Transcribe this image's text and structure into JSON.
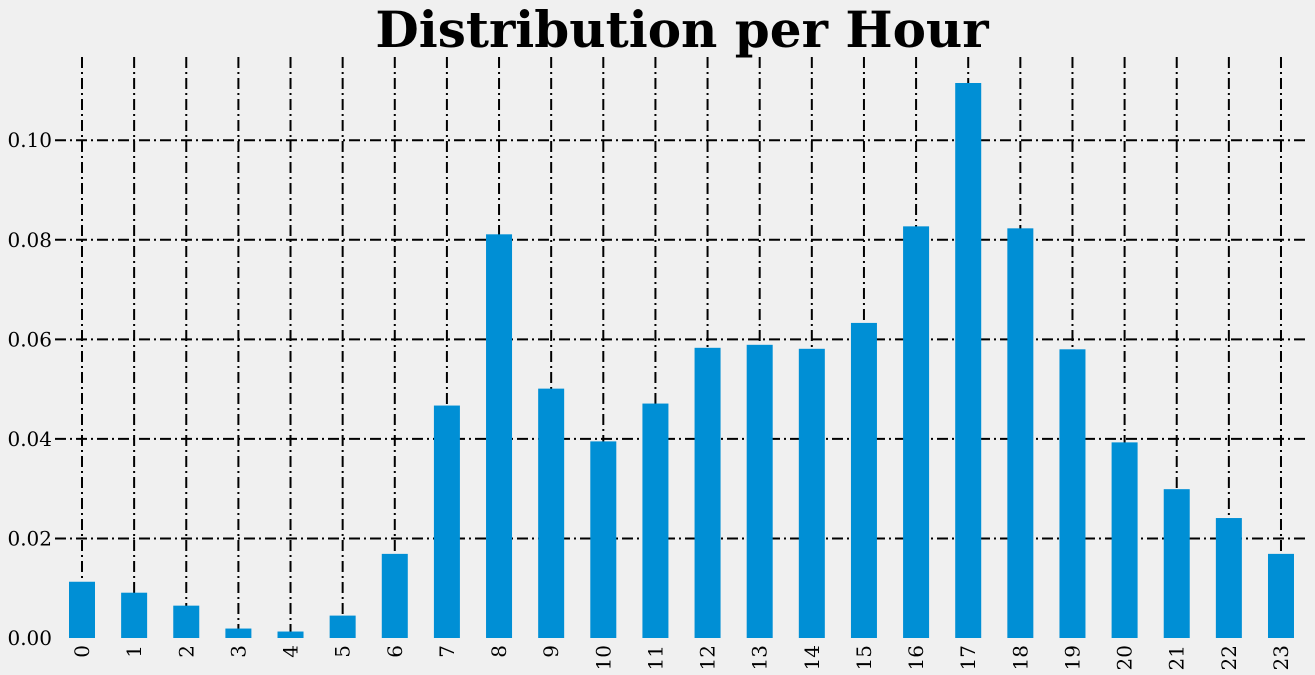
{
  "chart_data": {
    "type": "bar",
    "title": "Distribution per Hour",
    "xlabel": "",
    "ylabel": "",
    "categories": [
      "0",
      "1",
      "2",
      "3",
      "4",
      "5",
      "6",
      "7",
      "8",
      "9",
      "10",
      "11",
      "12",
      "13",
      "14",
      "15",
      "16",
      "17",
      "18",
      "19",
      "20",
      "21",
      "22",
      "23"
    ],
    "values": [
      0.0113,
      0.0091,
      0.0065,
      0.0019,
      0.0013,
      0.0045,
      0.0169,
      0.0467,
      0.0811,
      0.0501,
      0.0395,
      0.0471,
      0.0583,
      0.0589,
      0.0581,
      0.0633,
      0.0827,
      0.1115,
      0.0823,
      0.058,
      0.0393,
      0.0299,
      0.0241,
      0.0169
    ],
    "ylim": [
      0,
      0.117
    ],
    "yticks": [
      "0.00",
      "0.02",
      "0.04",
      "0.06",
      "0.08",
      "0.10"
    ],
    "ytick_values": [
      0,
      0.02,
      0.04,
      0.06,
      0.08,
      0.1
    ],
    "xtick_rotation": "vertical",
    "grid": true,
    "grid_style": "dash-dot",
    "legend": "none",
    "colors": {
      "bar": "#008fd5",
      "background": "#f0f0f0",
      "grid": "#000000",
      "text": "#000000"
    }
  }
}
